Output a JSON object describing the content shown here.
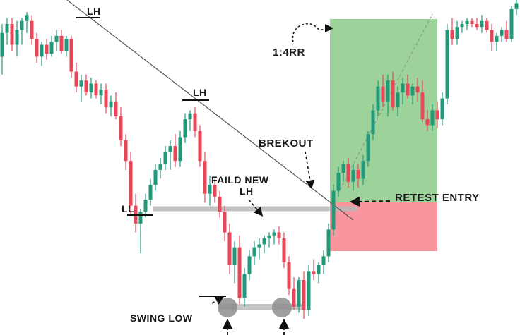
{
  "chart_data": {
    "type": "candlestick",
    "title": "",
    "xlabel": "",
    "ylabel": "",
    "ylim": [
      0,
      100
    ],
    "colors": {
      "bull": "#22997a",
      "bear": "#e8475a",
      "take_profit_zone": "#7cc47a",
      "stop_loss_zone": "#f7838c",
      "level": "#b5b5b5",
      "trendline": "#555555"
    },
    "candles": [
      {
        "o": 88,
        "h": 99,
        "l": 82,
        "c": 96
      },
      {
        "o": 96,
        "h": 101,
        "l": 92,
        "c": 99
      },
      {
        "o": 99,
        "h": 101,
        "l": 90,
        "c": 92
      },
      {
        "o": 92,
        "h": 100,
        "l": 88,
        "c": 97
      },
      {
        "o": 97,
        "h": 101,
        "l": 92,
        "c": 100
      },
      {
        "o": 100,
        "h": 103,
        "l": 96,
        "c": 102
      },
      {
        "o": 100,
        "h": 102,
        "l": 92,
        "c": 94
      },
      {
        "o": 94,
        "h": 96,
        "l": 86,
        "c": 88
      },
      {
        "o": 88,
        "h": 93,
        "l": 85,
        "c": 92
      },
      {
        "o": 92,
        "h": 94,
        "l": 87,
        "c": 89
      },
      {
        "o": 89,
        "h": 95,
        "l": 88,
        "c": 93
      },
      {
        "o": 93,
        "h": 97,
        "l": 90,
        "c": 95
      },
      {
        "o": 95,
        "h": 97,
        "l": 89,
        "c": 90
      },
      {
        "o": 90,
        "h": 95,
        "l": 88,
        "c": 94
      },
      {
        "o": 94,
        "h": 95,
        "l": 81,
        "c": 83
      },
      {
        "o": 83,
        "h": 86,
        "l": 76,
        "c": 78
      },
      {
        "o": 78,
        "h": 82,
        "l": 73,
        "c": 80
      },
      {
        "o": 80,
        "h": 82,
        "l": 75,
        "c": 76
      },
      {
        "o": 76,
        "h": 81,
        "l": 74,
        "c": 79
      },
      {
        "o": 79,
        "h": 80,
        "l": 74,
        "c": 75
      },
      {
        "o": 75,
        "h": 79,
        "l": 72,
        "c": 77
      },
      {
        "o": 77,
        "h": 79,
        "l": 69,
        "c": 71
      },
      {
        "o": 71,
        "h": 75,
        "l": 68,
        "c": 73
      },
      {
        "o": 73,
        "h": 76,
        "l": 67,
        "c": 68
      },
      {
        "o": 68,
        "h": 71,
        "l": 58,
        "c": 60
      },
      {
        "o": 60,
        "h": 62,
        "l": 50,
        "c": 53
      },
      {
        "o": 53,
        "h": 56,
        "l": 35,
        "c": 38
      },
      {
        "o": 38,
        "h": 42,
        "l": 29,
        "c": 32
      },
      {
        "o": 32,
        "h": 37,
        "l": 22,
        "c": 36
      },
      {
        "o": 36,
        "h": 42,
        "l": 34,
        "c": 40
      },
      {
        "o": 40,
        "h": 47,
        "l": 38,
        "c": 45
      },
      {
        "o": 45,
        "h": 52,
        "l": 43,
        "c": 50
      },
      {
        "o": 50,
        "h": 54,
        "l": 47,
        "c": 52
      },
      {
        "o": 52,
        "h": 58,
        "l": 50,
        "c": 56
      },
      {
        "o": 56,
        "h": 60,
        "l": 50,
        "c": 58
      },
      {
        "o": 58,
        "h": 62,
        "l": 51,
        "c": 53
      },
      {
        "o": 53,
        "h": 63,
        "l": 51,
        "c": 61
      },
      {
        "o": 61,
        "h": 69,
        "l": 59,
        "c": 67
      },
      {
        "o": 67,
        "h": 70,
        "l": 63,
        "c": 69
      },
      {
        "o": 69,
        "h": 71,
        "l": 61,
        "c": 63
      },
      {
        "o": 63,
        "h": 65,
        "l": 51,
        "c": 53
      },
      {
        "o": 53,
        "h": 56,
        "l": 39,
        "c": 42
      },
      {
        "o": 42,
        "h": 48,
        "l": 38,
        "c": 45
      },
      {
        "o": 45,
        "h": 47,
        "l": 39,
        "c": 41
      },
      {
        "o": 41,
        "h": 43,
        "l": 34,
        "c": 36
      },
      {
        "o": 36,
        "h": 38,
        "l": 26,
        "c": 29
      },
      {
        "o": 29,
        "h": 32,
        "l": 15,
        "c": 18
      },
      {
        "o": 18,
        "h": 26,
        "l": 12,
        "c": 24
      },
      {
        "o": 24,
        "h": 28,
        "l": 5,
        "c": 7
      },
      {
        "o": 7,
        "h": 17,
        "l": 4,
        "c": 15
      },
      {
        "o": 15,
        "h": 23,
        "l": 13,
        "c": 21
      },
      {
        "o": 21,
        "h": 26,
        "l": 18,
        "c": 24
      },
      {
        "o": 24,
        "h": 27,
        "l": 20,
        "c": 25
      },
      {
        "o": 25,
        "h": 28,
        "l": 22,
        "c": 27
      },
      {
        "o": 27,
        "h": 29,
        "l": 24,
        "c": 28
      },
      {
        "o": 28,
        "h": 30,
        "l": 25,
        "c": 29
      },
      {
        "o": 29,
        "h": 31,
        "l": 25,
        "c": 27
      },
      {
        "o": 27,
        "h": 29,
        "l": 17,
        "c": 19
      },
      {
        "o": 19,
        "h": 21,
        "l": 8,
        "c": 10
      },
      {
        "o": 10,
        "h": 14,
        "l": 3,
        "c": 4
      },
      {
        "o": 4,
        "h": 14,
        "l": 2,
        "c": 13
      },
      {
        "o": 13,
        "h": 16,
        "l": 0,
        "c": 3
      },
      {
        "o": 3,
        "h": 18,
        "l": 1,
        "c": 16
      },
      {
        "o": 16,
        "h": 20,
        "l": 13,
        "c": 15
      },
      {
        "o": 15,
        "h": 19,
        "l": 12,
        "c": 18
      },
      {
        "o": 18,
        "h": 23,
        "l": 15,
        "c": 21
      },
      {
        "o": 21,
        "h": 32,
        "l": 19,
        "c": 30
      },
      {
        "o": 30,
        "h": 45,
        "l": 28,
        "c": 43
      },
      {
        "o": 43,
        "h": 51,
        "l": 41,
        "c": 49
      },
      {
        "o": 49,
        "h": 53,
        "l": 46,
        "c": 52
      },
      {
        "o": 52,
        "h": 54,
        "l": 44,
        "c": 46
      },
      {
        "o": 46,
        "h": 52,
        "l": 43,
        "c": 50
      },
      {
        "o": 50,
        "h": 52,
        "l": 44,
        "c": 47
      },
      {
        "o": 47,
        "h": 55,
        "l": 45,
        "c": 53
      },
      {
        "o": 53,
        "h": 63,
        "l": 51,
        "c": 62
      },
      {
        "o": 62,
        "h": 72,
        "l": 60,
        "c": 70
      },
      {
        "o": 70,
        "h": 80,
        "l": 68,
        "c": 78
      },
      {
        "o": 78,
        "h": 82,
        "l": 71,
        "c": 73
      },
      {
        "o": 73,
        "h": 82,
        "l": 68,
        "c": 80
      },
      {
        "o": 80,
        "h": 83,
        "l": 70,
        "c": 71
      },
      {
        "o": 71,
        "h": 78,
        "l": 68,
        "c": 76
      },
      {
        "o": 76,
        "h": 81,
        "l": 72,
        "c": 79
      },
      {
        "o": 79,
        "h": 82,
        "l": 74,
        "c": 75
      },
      {
        "o": 75,
        "h": 79,
        "l": 72,
        "c": 78
      },
      {
        "o": 78,
        "h": 81,
        "l": 73,
        "c": 76
      },
      {
        "o": 76,
        "h": 80,
        "l": 66,
        "c": 67
      },
      {
        "o": 67,
        "h": 70,
        "l": 63,
        "c": 65
      },
      {
        "o": 65,
        "h": 72,
        "l": 63,
        "c": 70
      },
      {
        "o": 70,
        "h": 73,
        "l": 64,
        "c": 67
      },
      {
        "o": 67,
        "h": 76,
        "l": 65,
        "c": 74
      },
      {
        "o": 74,
        "h": 99,
        "l": 72,
        "c": 97
      },
      {
        "o": 97,
        "h": 101,
        "l": 92,
        "c": 94
      },
      {
        "o": 94,
        "h": 100,
        "l": 92,
        "c": 98
      },
      {
        "o": 98,
        "h": 100,
        "l": 96,
        "c": 99
      },
      {
        "o": 99,
        "h": 101,
        "l": 97,
        "c": 100
      },
      {
        "o": 100,
        "h": 101,
        "l": 98,
        "c": 99
      },
      {
        "o": 99,
        "h": 101,
        "l": 97,
        "c": 98
      },
      {
        "o": 98,
        "h": 102,
        "l": 96,
        "c": 100
      },
      {
        "o": 100,
        "h": 101,
        "l": 96,
        "c": 97
      },
      {
        "o": 97,
        "h": 99,
        "l": 90,
        "c": 93
      },
      {
        "o": 93,
        "h": 96,
        "l": 90,
        "c": 95
      },
      {
        "o": 95,
        "h": 98,
        "l": 93,
        "c": 97
      },
      {
        "o": 97,
        "h": 100,
        "l": 93,
        "c": 94
      },
      {
        "o": 94,
        "h": 105,
        "l": 93,
        "c": 104
      },
      {
        "o": 104,
        "h": 108,
        "l": 102,
        "c": 106
      }
    ],
    "annotations": {
      "lh_1": "LH",
      "lh_2": "LH",
      "ll": "LL",
      "faild_new_lh_line1": "FAILD NEW",
      "faild_new_lh_line2": "LH",
      "brekout": "BREKOUT",
      "retest_entry": "RETEST ENTRY",
      "risk_reward": "1:4RR",
      "swing_low": "SWING LOW"
    }
  }
}
